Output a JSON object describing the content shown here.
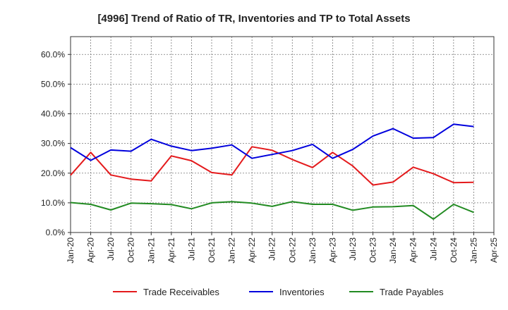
{
  "chart_data": {
    "type": "line",
    "title": "[4996]  Trend of Ratio of TR, Inventories and TP to Total Assets",
    "xlabel": "",
    "ylabel": "",
    "ylim": [
      0,
      66
    ],
    "yticks": [
      0,
      10,
      20,
      30,
      40,
      50,
      60
    ],
    "ytick_labels": [
      "0.0%",
      "10.0%",
      "20.0%",
      "30.0%",
      "40.0%",
      "50.0%",
      "60.0%"
    ],
    "xtick_labels": [
      "Jan-20",
      "Apr-20",
      "Jul-20",
      "Oct-20",
      "Jan-21",
      "Apr-21",
      "Jul-21",
      "Oct-21",
      "Jan-22",
      "Apr-22",
      "Jul-22",
      "Oct-22",
      "Jan-23",
      "Apr-23",
      "Jul-23",
      "Oct-23",
      "Jan-24",
      "Apr-24",
      "Jul-24",
      "Oct-24",
      "Jan-25",
      "Apr-25"
    ],
    "grid": true,
    "legend_position": "bottom",
    "x": [
      "Jan-20",
      "Apr-20",
      "Jul-20",
      "Oct-20",
      "Jan-21",
      "Apr-21",
      "Jul-21",
      "Oct-21",
      "Jan-22",
      "Apr-22",
      "Jul-22",
      "Oct-22",
      "Jan-23",
      "Apr-23",
      "Jul-23",
      "Oct-23",
      "Jan-24",
      "Apr-24",
      "Jul-24",
      "Oct-24",
      "Jan-25"
    ],
    "series": [
      {
        "name": "Trade Receivables",
        "color": "#e41a1c",
        "values": [
          19.3,
          27.0,
          19.4,
          18.0,
          17.4,
          25.8,
          24.2,
          20.2,
          19.4,
          28.9,
          27.7,
          24.6,
          21.9,
          27.0,
          22.4,
          16.0,
          17.0,
          22.0,
          19.8,
          16.8,
          16.9
        ]
      },
      {
        "name": "Inventories",
        "color": "#0000dd",
        "values": [
          28.6,
          24.3,
          27.8,
          27.4,
          31.4,
          29.1,
          27.6,
          28.4,
          29.5,
          25.0,
          26.3,
          27.6,
          29.7,
          25.0,
          28.0,
          32.5,
          35.0,
          31.8,
          32.0,
          36.5,
          35.7
        ]
      },
      {
        "name": "Trade Payables",
        "color": "#228b22",
        "values": [
          10.1,
          9.5,
          7.6,
          9.9,
          9.7,
          9.4,
          8.0,
          10.0,
          10.4,
          9.9,
          8.8,
          10.4,
          9.5,
          9.5,
          7.5,
          8.6,
          8.7,
          9.1,
          4.5,
          9.5,
          6.8
        ]
      }
    ]
  }
}
